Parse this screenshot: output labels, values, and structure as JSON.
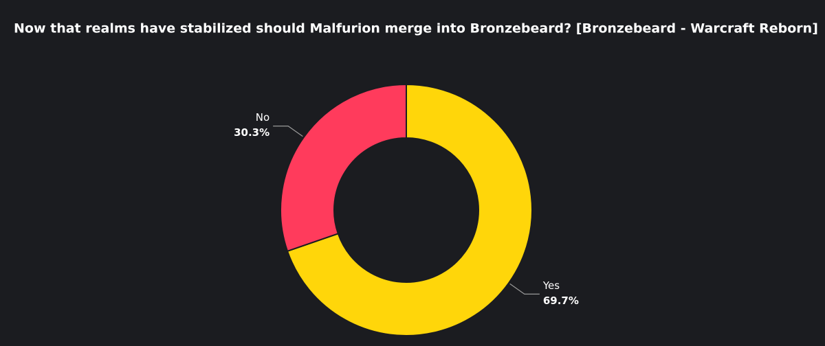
{
  "chart_data": {
    "type": "donut",
    "title": "Now that realms have stabilized should Malfurion merge into Bronzebeard? [Bronzebeard - Warcraft Reborn]",
    "categories": [
      "Yes",
      "No"
    ],
    "values": [
      69.7,
      30.3
    ],
    "value_labels": [
      "69.7%",
      "30.3%"
    ],
    "colors": [
      "#ffd60a",
      "#ff3b5c"
    ]
  }
}
